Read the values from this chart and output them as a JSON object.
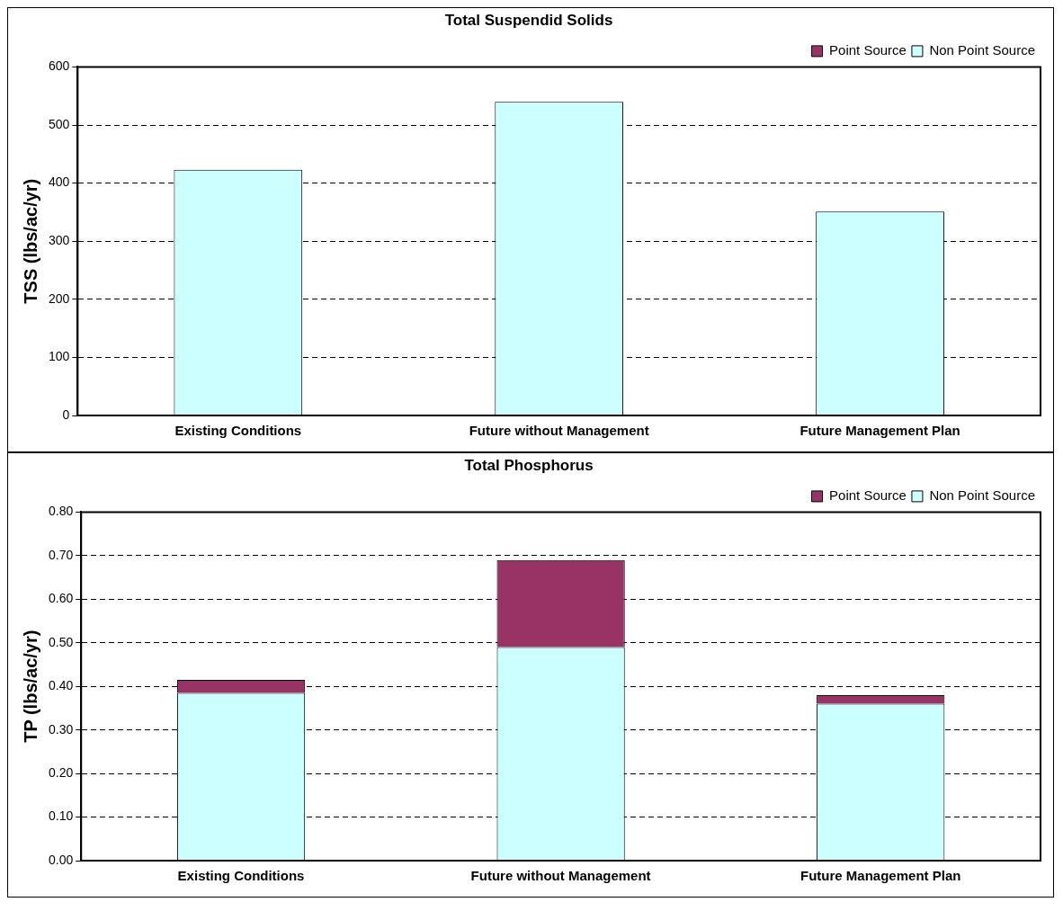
{
  "chart_data": [
    {
      "type": "bar",
      "title": "Total Suspendid Solids",
      "ylabel": "TSS (lbs/ac/yr)",
      "categories": [
        "Existing Conditions",
        "Future without Management",
        "Future Management Plan"
      ],
      "series": [
        {
          "name": "Non Point Source",
          "color": "#ccffff",
          "values": [
            423,
            540,
            351
          ]
        },
        {
          "name": "Point Source",
          "color": "#993366",
          "values": [
            0,
            0,
            0
          ]
        }
      ],
      "stacked": true,
      "ylim": [
        0,
        600
      ],
      "yticks": [
        0,
        100,
        200,
        300,
        400,
        500,
        600
      ],
      "grid": "y",
      "legend": "top right"
    },
    {
      "type": "bar",
      "title": "Total Phosphorus",
      "ylabel": "TP (lbs/ac/yr)",
      "categories": [
        "Existing Conditions",
        "Future without Management",
        "Future Management Plan"
      ],
      "series": [
        {
          "name": "Non Point Source",
          "color": "#ccffff",
          "values": [
            0.385,
            0.49,
            0.36
          ]
        },
        {
          "name": "Point Source",
          "color": "#993366",
          "values": [
            0.03,
            0.2,
            0.02
          ]
        }
      ],
      "stacked": true,
      "ylim": [
        0,
        0.8
      ],
      "yticks": [
        {
          "value": 0,
          "label": "0.00"
        },
        {
          "value": 0.1,
          "label": "0.10"
        },
        {
          "value": 0.2,
          "label": "0.20"
        },
        {
          "value": 0.3,
          "label": "0.30"
        },
        {
          "value": 0.4,
          "label": "0.40"
        },
        {
          "value": 0.5,
          "label": "0.50"
        },
        {
          "value": 0.6,
          "label": "0.60"
        },
        {
          "value": 0.7,
          "label": "0.70"
        },
        {
          "value": 0.8,
          "label": "0.80"
        }
      ],
      "grid": "y",
      "legend": "top right"
    }
  ]
}
